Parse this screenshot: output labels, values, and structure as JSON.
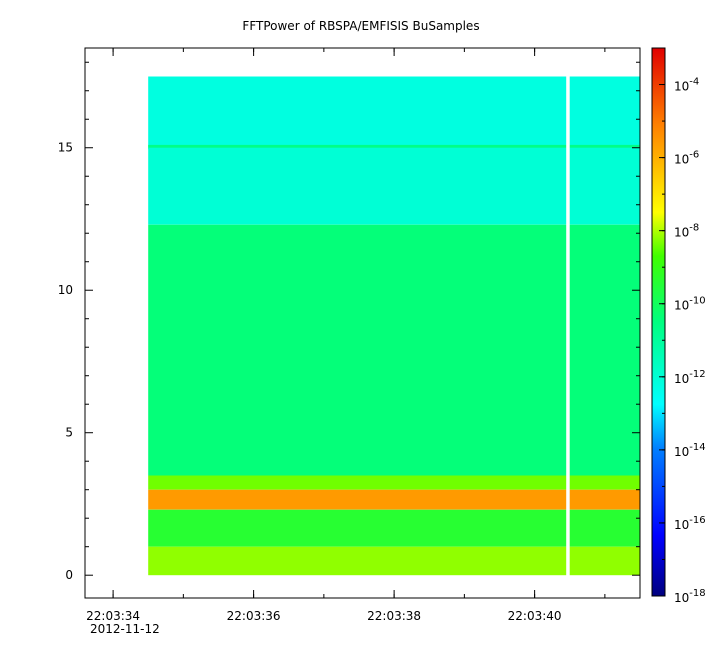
{
  "chart_data": {
    "type": "heatmap",
    "title": "FFTPower of RBSPA/EMFISIS  BuSamples",
    "xlabel": "",
    "ylabel": "",
    "x_axis": {
      "range": [
        "22:03:33.6",
        "22:03:41.5"
      ],
      "ticks": [
        "22:03:34",
        "22:03:36",
        "22:03:38",
        "22:03:40"
      ],
      "minor_tick_step_seconds": 1,
      "date_label": "2012-11-12"
    },
    "y_axis": {
      "range": [
        -0.8,
        18.5
      ],
      "ticks": [
        0,
        5,
        10,
        15
      ]
    },
    "colorbar": {
      "scale": "log",
      "range": [
        1e-18,
        0.001
      ],
      "ticks": [
        {
          "value": 0.0001,
          "base": "10",
          "exp": "-4"
        },
        {
          "value": 1e-06,
          "base": "10",
          "exp": "-6"
        },
        {
          "value": 1e-08,
          "base": "10",
          "exp": "-8"
        },
        {
          "value": 1e-10,
          "base": "10",
          "exp": "-10"
        },
        {
          "value": 1e-12,
          "base": "10",
          "exp": "-12"
        },
        {
          "value": 1e-14,
          "base": "10",
          "exp": "-14"
        },
        {
          "value": 1e-16,
          "base": "10",
          "exp": "-16"
        },
        {
          "value": 1e-18,
          "base": "10",
          "exp": "-18"
        }
      ]
    },
    "data_extent": {
      "x": [
        "22:03:34.5",
        "22:03:41.5"
      ],
      "y": [
        0,
        17.5
      ]
    },
    "data_gap": {
      "x": [
        "22:03:40.45",
        "22:03:40.5"
      ]
    },
    "spectral_features": [
      {
        "y_range": [
          15,
          17.5
        ],
        "log_power": -12.2
      },
      {
        "y_range": [
          14.95,
          15.1
        ],
        "log_power": -10.6
      },
      {
        "y_range": [
          12.3,
          15
        ],
        "log_power": -12.0
      },
      {
        "y_range": [
          3.5,
          12.3
        ],
        "log_power": -10.4
      },
      {
        "y_range": [
          3.0,
          3.5
        ],
        "log_power": -8.4
      },
      {
        "y_range": [
          2.3,
          3.0
        ],
        "log_power": -5.6
      },
      {
        "y_range": [
          1.0,
          2.3
        ],
        "log_power": -9.4
      },
      {
        "y_range": [
          0,
          1.0
        ],
        "log_power": -8.2
      }
    ],
    "grid": false,
    "legend": "colorbar-right"
  }
}
